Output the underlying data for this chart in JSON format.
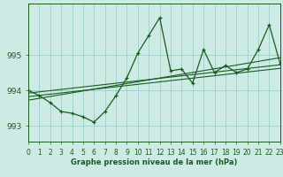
{
  "title": "Graphe pression niveau de la mer (hPa)",
  "bg_color": "#ceeae5",
  "grid_color": "#9ecec8",
  "line_color": "#1a5c20",
  "xlim": [
    0,
    23
  ],
  "ylim": [
    992.55,
    996.45
  ],
  "yticks": [
    993,
    994,
    995
  ],
  "xticks": [
    0,
    1,
    2,
    3,
    4,
    5,
    6,
    7,
    8,
    9,
    10,
    11,
    12,
    13,
    14,
    15,
    16,
    17,
    18,
    19,
    20,
    21,
    22,
    23
  ],
  "main_data": [
    994.0,
    993.85,
    993.65,
    993.4,
    993.35,
    993.25,
    993.1,
    993.4,
    993.85,
    994.35,
    995.05,
    995.55,
    996.05,
    994.55,
    994.6,
    994.2,
    995.15,
    994.5,
    994.7,
    994.5,
    994.6,
    995.15,
    995.85,
    994.75
  ],
  "trend_lines": [
    {
      "x0": 0,
      "y0": 993.92,
      "x1": 23,
      "y1": 994.72
    },
    {
      "x0": 0,
      "y0": 993.82,
      "x1": 23,
      "y1": 994.62
    },
    {
      "x0": 0,
      "y0": 993.72,
      "x1": 23,
      "y1": 994.92
    }
  ],
  "xlabel_fontsize": 6.0,
  "tick_fontsize": 5.5,
  "ylabel_fontsize": 6.5
}
